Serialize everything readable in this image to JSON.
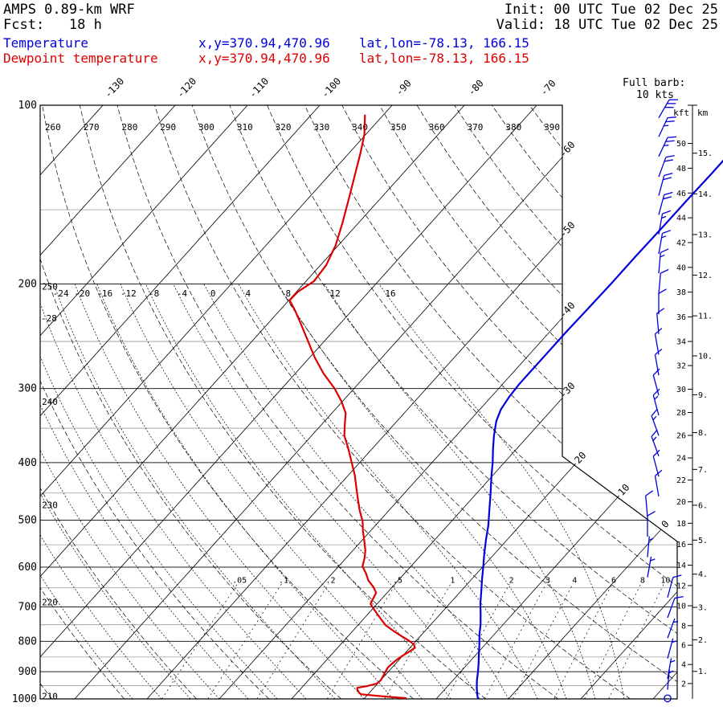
{
  "header": {
    "model": "AMPS 0.89-km WRF",
    "fcst": "Fcst:   18 h",
    "init": "Init: 00 UTC Tue 02 Dec 25",
    "valid": "Valid: 18 UTC Tue 02 Dec 25",
    "temp_label": "Temperature",
    "temp_xy": "x,y=370.94,470.96",
    "temp_latlon": "lat,lon=-78.13, 166.15",
    "dewp_label": "Dewpoint temperature",
    "dewp_xy": "x,y=370.94,470.96",
    "dewp_latlon": "lat,lon=-78.13, 166.15",
    "barb_legend_1": "Full barb:",
    "barb_legend_2": "10 kts"
  },
  "colors": {
    "temperature": "#0000dd",
    "dewpoint": "#dd0000",
    "isobar_major": "#222222",
    "isobar_minor": "#999999",
    "grid": "#000000"
  },
  "chart_data": {
    "type": "skewt_logp_sounding",
    "pressure_unit": "hPa",
    "temperature_unit": "C",
    "pressure_levels": [
      100,
      200,
      300,
      400,
      500,
      600,
      700,
      800,
      900,
      1000
    ],
    "isobars": {
      "major": [
        200,
        300,
        400,
        500,
        600,
        700,
        800,
        900
      ],
      "minor": [
        150,
        250,
        350,
        450,
        550,
        650,
        750,
        850,
        950
      ]
    },
    "isotherms": {
      "values": [
        -130,
        -120,
        -110,
        -100,
        -90,
        -80,
        -70,
        -60,
        -50,
        -40,
        -30,
        -20,
        -10,
        0,
        10,
        20
      ],
      "top_labels": [
        -130,
        -120,
        -110,
        -100,
        -90,
        -80,
        -70
      ],
      "right_labels": [
        -60,
        -50,
        -40,
        -30
      ],
      "diag_labels": [
        -20,
        -10,
        0
      ]
    },
    "dry_adiabats": {
      "theta_K": [
        210,
        220,
        230,
        240,
        250,
        260,
        270,
        280,
        290,
        300,
        310,
        320,
        330,
        340,
        350,
        360,
        370,
        380,
        390
      ],
      "left_labeled": [
        210,
        220,
        230,
        240,
        250
      ],
      "top_labeled": [
        260,
        270,
        280,
        290,
        300,
        310,
        320,
        330,
        340,
        350,
        360,
        370,
        380,
        390
      ]
    },
    "moist_adiabats": {
      "thetaw_C": [
        -52,
        -48,
        -44,
        -40,
        -36,
        -32,
        -28,
        -24,
        -20,
        -16,
        -12,
        -8,
        -4,
        0,
        4,
        8,
        12,
        16
      ],
      "labeled_at_200": [
        -24,
        -20,
        -16,
        -12,
        -8,
        -4,
        0,
        4,
        8,
        12,
        16
      ],
      "labeled_left": [
        -28
      ]
    },
    "mixing_ratio_gkg": [
      0.05,
      0.1,
      0.2,
      0.5,
      1,
      2,
      3,
      4,
      6,
      8,
      10
    ],
    "mixing_ratio_labels": [
      ".05",
      ".1",
      ".2",
      ".5",
      "1",
      "2",
      "3",
      "4",
      "6",
      "8",
      "10"
    ],
    "height_scale": {
      "kft_label": "kft",
      "km_label": "km",
      "kft_max": 50,
      "kft_step": 2,
      "km_max": 15,
      "km_step": 1
    },
    "temperature_profile": [
      [
        998,
        -4.3
      ],
      [
        985,
        -4.8
      ],
      [
        960,
        -5.7
      ],
      [
        930,
        -6.7
      ],
      [
        900,
        -7.6
      ],
      [
        870,
        -8.6
      ],
      [
        840,
        -9.7
      ],
      [
        810,
        -10.8
      ],
      [
        780,
        -12.0
      ],
      [
        750,
        -13.1
      ],
      [
        720,
        -14.4
      ],
      [
        690,
        -15.8
      ],
      [
        660,
        -17.1
      ],
      [
        630,
        -18.5
      ],
      [
        600,
        -19.9
      ],
      [
        570,
        -21.4
      ],
      [
        540,
        -22.9
      ],
      [
        510,
        -24.4
      ],
      [
        480,
        -26.2
      ],
      [
        450,
        -28.1
      ],
      [
        420,
        -30.2
      ],
      [
        400,
        -31.6
      ],
      [
        380,
        -33.2
      ],
      [
        360,
        -34.8
      ],
      [
        340,
        -36.3
      ],
      [
        325,
        -37.1
      ],
      [
        310,
        -37.5
      ],
      [
        295,
        -37.7
      ],
      [
        280,
        -37.7
      ],
      [
        260,
        -37.7
      ],
      [
        240,
        -37.7
      ],
      [
        220,
        -37.6
      ],
      [
        200,
        -37.5
      ],
      [
        180,
        -37.5
      ],
      [
        160,
        -37.4
      ],
      [
        145,
        -37.4
      ],
      [
        130,
        -37.3
      ],
      [
        115,
        -37.3
      ],
      [
        105,
        -37.3
      ]
    ],
    "dewpoint_profile": [
      [
        104,
        -92.5
      ],
      [
        112,
        -90.2
      ],
      [
        121,
        -88.3
      ],
      [
        132,
        -86.3
      ],
      [
        144,
        -84.3
      ],
      [
        158,
        -82.2
      ],
      [
        172,
        -80.4
      ],
      [
        186,
        -79.2
      ],
      [
        198,
        -78.9
      ],
      [
        206,
        -79.8
      ],
      [
        213,
        -79.9
      ],
      [
        222,
        -77.8
      ],
      [
        235,
        -75.1
      ],
      [
        250,
        -72.2
      ],
      [
        266,
        -69.3
      ],
      [
        283,
        -66.1
      ],
      [
        300,
        -62.7
      ],
      [
        315,
        -60.2
      ],
      [
        330,
        -58.1
      ],
      [
        345,
        -56.8
      ],
      [
        360,
        -55.5
      ],
      [
        378,
        -53.4
      ],
      [
        398,
        -51.3
      ],
      [
        420,
        -49.1
      ],
      [
        440,
        -47.4
      ],
      [
        462,
        -45.6
      ],
      [
        482,
        -44.0
      ],
      [
        502,
        -42.3
      ],
      [
        522,
        -41.0
      ],
      [
        542,
        -39.6
      ],
      [
        562,
        -38.3
      ],
      [
        580,
        -37.4
      ],
      [
        598,
        -36.7
      ],
      [
        615,
        -35.3
      ],
      [
        632,
        -34.1
      ],
      [
        648,
        -32.6
      ],
      [
        663,
        -31.5
      ],
      [
        678,
        -31.2
      ],
      [
        692,
        -30.9
      ],
      [
        706,
        -29.8
      ],
      [
        721,
        -28.6
      ],
      [
        736,
        -27.4
      ],
      [
        751,
        -26.2
      ],
      [
        768,
        -24.4
      ],
      [
        784,
        -22.6
      ],
      [
        797,
        -21.1
      ],
      [
        809,
        -19.9
      ],
      [
        820,
        -19.3
      ],
      [
        832,
        -19.6
      ],
      [
        845,
        -20.0
      ],
      [
        858,
        -20.3
      ],
      [
        872,
        -20.5
      ],
      [
        886,
        -20.6
      ],
      [
        900,
        -20.4
      ],
      [
        915,
        -20.2
      ],
      [
        930,
        -20.0
      ],
      [
        942,
        -20.1
      ],
      [
        952,
        -21.2
      ],
      [
        958,
        -22.3
      ],
      [
        966,
        -22.0
      ],
      [
        975,
        -21.5
      ],
      [
        982,
        -21.0
      ],
      [
        988,
        -18.6
      ],
      [
        993,
        -16.4
      ],
      [
        997,
        -14.3
      ]
    ],
    "wind_barbs_p_spd_dir": [
      [
        105,
        30,
        30
      ],
      [
        113,
        25,
        25
      ],
      [
        122,
        25,
        25
      ],
      [
        132,
        20,
        20
      ],
      [
        142,
        20,
        15
      ],
      [
        153,
        20,
        15
      ],
      [
        165,
        15,
        10
      ],
      [
        178,
        15,
        10
      ],
      [
        192,
        15,
        5
      ],
      [
        208,
        10,
        5
      ],
      [
        225,
        10,
        0
      ],
      [
        243,
        10,
        355
      ],
      [
        263,
        10,
        350
      ],
      [
        285,
        10,
        350
      ],
      [
        308,
        10,
        345
      ],
      [
        333,
        15,
        345
      ],
      [
        360,
        15,
        340
      ],
      [
        390,
        15,
        340
      ],
      [
        422,
        10,
        345
      ],
      [
        456,
        10,
        350
      ],
      [
        493,
        10,
        355
      ],
      [
        533,
        10,
        0
      ],
      [
        577,
        5,
        5
      ],
      [
        624,
        5,
        10
      ],
      [
        675,
        10,
        15
      ],
      [
        730,
        10,
        20
      ],
      [
        790,
        5,
        20
      ],
      [
        855,
        5,
        15
      ],
      [
        925,
        5,
        10
      ],
      [
        965,
        3,
        5
      ],
      [
        998,
        0,
        0
      ]
    ]
  }
}
